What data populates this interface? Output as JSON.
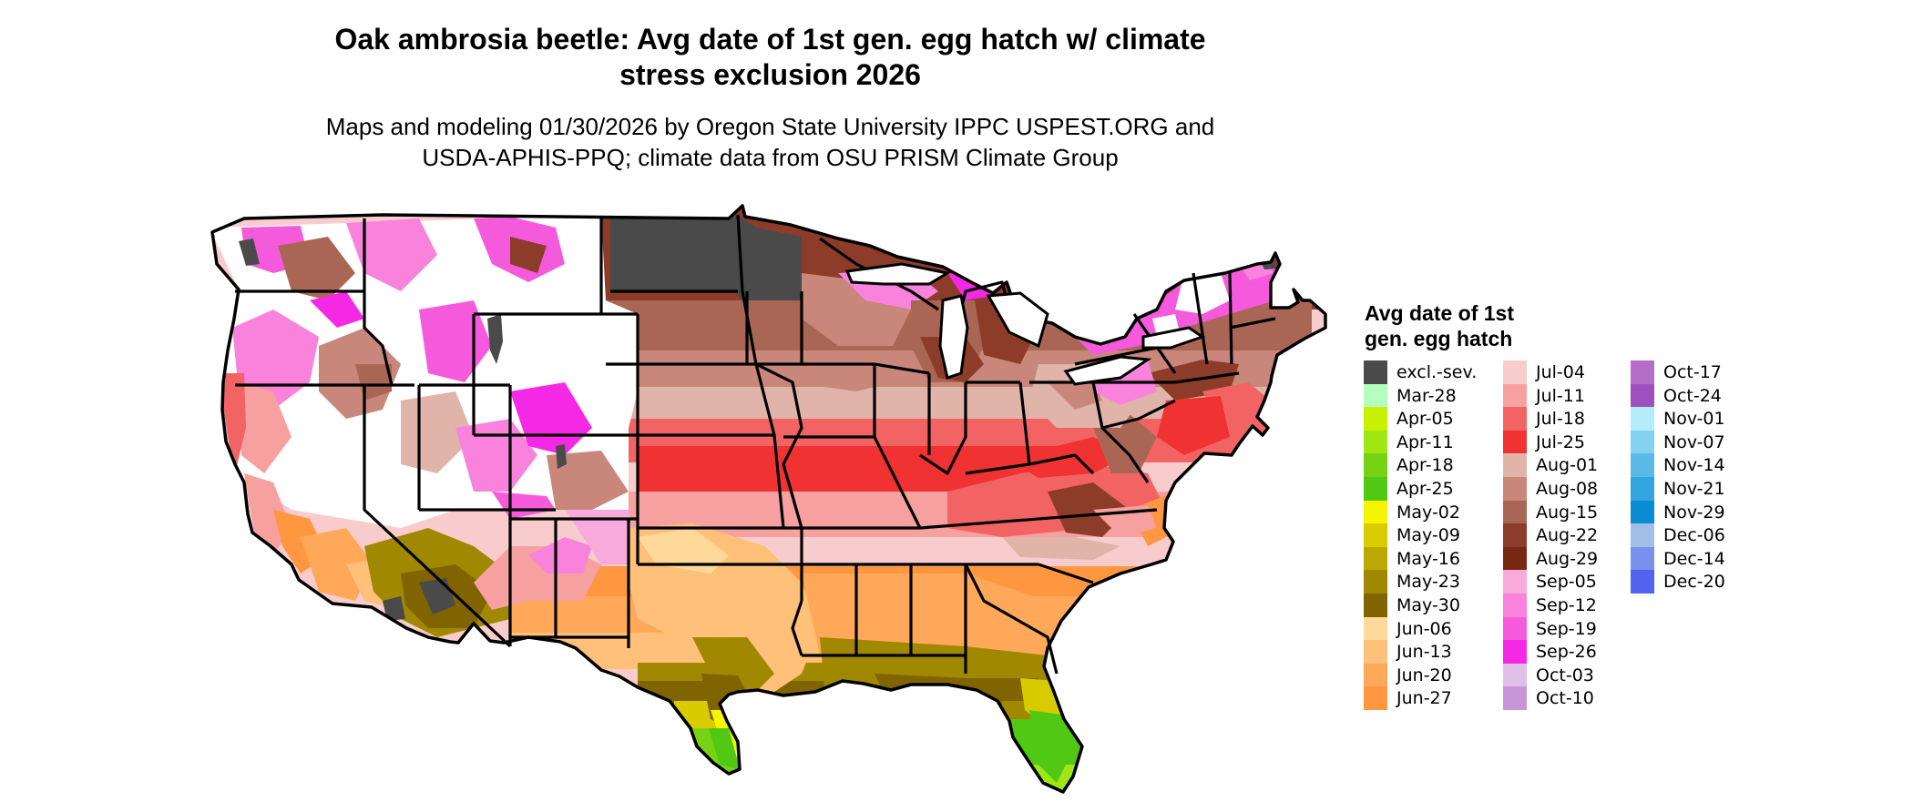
{
  "title": {
    "line1": "Oak ambrosia beetle: Avg date of 1st gen. egg hatch w/ climate",
    "line2": "stress exclusion 2026"
  },
  "subtitle": {
    "line1": "Maps and modeling 01/30/2026 by Oregon State University IPPC USPEST.ORG and",
    "line2": "USDA-APHIS-PPQ; climate data from OSU PRISM Climate Group"
  },
  "legend": {
    "title_line1": "Avg date of 1st",
    "title_line2": "gen. egg hatch",
    "columns": [
      [
        {
          "label": "excl.-sev.",
          "color": "#4a4a4a"
        },
        {
          "label": "Mar-28",
          "color": "#b4ffc0"
        },
        {
          "label": "Apr-05",
          "color": "#c8f000"
        },
        {
          "label": "Apr-11",
          "color": "#a0e614"
        },
        {
          "label": "Apr-18",
          "color": "#78d214"
        },
        {
          "label": "Apr-25",
          "color": "#50c814"
        },
        {
          "label": "May-02",
          "color": "#f5f500"
        },
        {
          "label": "May-09",
          "color": "#d8cc00"
        },
        {
          "label": "May-16",
          "color": "#bca800"
        },
        {
          "label": "May-23",
          "color": "#a08800"
        },
        {
          "label": "May-30",
          "color": "#806400"
        },
        {
          "label": "Jun-06",
          "color": "#ffd99a"
        },
        {
          "label": "Jun-13",
          "color": "#ffc07a"
        },
        {
          "label": "Jun-20",
          "color": "#ffa85a"
        },
        {
          "label": "Jun-27",
          "color": "#ff9640"
        }
      ],
      [
        {
          "label": "Jul-04",
          "color": "#f8cccc"
        },
        {
          "label": "Jul-11",
          "color": "#f6a0a0"
        },
        {
          "label": "Jul-18",
          "color": "#f26464"
        },
        {
          "label": "Jul-25",
          "color": "#f03232"
        },
        {
          "label": "Aug-01",
          "color": "#e0b4a8"
        },
        {
          "label": "Aug-08",
          "color": "#c8877a"
        },
        {
          "label": "Aug-15",
          "color": "#aa6655"
        },
        {
          "label": "Aug-22",
          "color": "#8c3c28"
        },
        {
          "label": "Aug-29",
          "color": "#782810"
        },
        {
          "label": "Sep-05",
          "color": "#f8aadc"
        },
        {
          "label": "Sep-12",
          "color": "#f882dc"
        },
        {
          "label": "Sep-19",
          "color": "#f55adc"
        },
        {
          "label": "Sep-26",
          "color": "#f528e6"
        },
        {
          "label": "Oct-03",
          "color": "#e0c0e8"
        },
        {
          "label": "Oct-10",
          "color": "#c896d6"
        }
      ],
      [
        {
          "label": "Oct-17",
          "color": "#b46ec8"
        },
        {
          "label": "Oct-24",
          "color": "#a050be"
        },
        {
          "label": "Nov-01",
          "color": "#b4ecfa"
        },
        {
          "label": "Nov-07",
          "color": "#82d2f0"
        },
        {
          "label": "Nov-14",
          "color": "#5ab9e6"
        },
        {
          "label": "Nov-21",
          "color": "#32a5e0"
        },
        {
          "label": "Nov-29",
          "color": "#0a8cd2"
        },
        {
          "label": "Dec-06",
          "color": "#a0bee6"
        },
        {
          "label": "Dec-14",
          "color": "#7891ec"
        },
        {
          "label": "Dec-20",
          "color": "#5064f0"
        }
      ]
    ]
  },
  "map": {
    "region": "contiguous-united-states",
    "outline_color": "#000000",
    "excluded_color": "#4a4a4a"
  }
}
